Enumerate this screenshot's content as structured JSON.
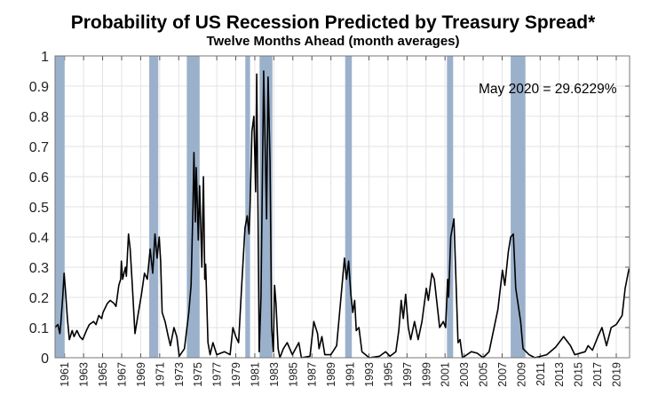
{
  "chart_data": {
    "type": "line",
    "title": "Probability of US Recession Predicted by Treasury Spread*",
    "subtitle": "Twelve Months Ahead (month averages)",
    "xlabel": "",
    "ylabel": "",
    "xlim": [
      1960,
      2020.4
    ],
    "ylim": [
      0,
      1
    ],
    "grid": true,
    "y_ticks": [
      "0",
      "0.1",
      "0.2",
      "0.3",
      "0.4",
      "0.5",
      "0.6",
      "0.7",
      "0.8",
      "0.9",
      "1"
    ],
    "x_ticks": [
      "1961",
      "1963",
      "1965",
      "1967",
      "1969",
      "1971",
      "1973",
      "1975",
      "1977",
      "1979",
      "1981",
      "1983",
      "1985",
      "1987",
      "1989",
      "1991",
      "1993",
      "1995",
      "1997",
      "1999",
      "2001",
      "2003",
      "2005",
      "2007",
      "2009",
      "2011",
      "2013",
      "2015",
      "2017",
      "2019"
    ],
    "annotation": "May 2020 = 29.6229%",
    "colors": {
      "line": "#000000",
      "recession_band": "#9bb1cb",
      "grid": "#e3e3e3"
    },
    "recession_bands": [
      [
        1960.0,
        1961.0
      ],
      [
        1969.9,
        1970.85
      ],
      [
        1973.85,
        1975.2
      ],
      [
        1980.0,
        1980.5
      ],
      [
        1981.5,
        1982.85
      ],
      [
        1990.5,
        1991.2
      ],
      [
        2001.2,
        2001.85
      ],
      [
        2007.9,
        2009.45
      ]
    ],
    "series": [
      {
        "points": [
          [
            1960.0,
            0.1
          ],
          [
            1960.3,
            0.11
          ],
          [
            1960.5,
            0.08
          ],
          [
            1960.6,
            0.11
          ],
          [
            1960.8,
            0.2
          ],
          [
            1960.95,
            0.28
          ],
          [
            1961.1,
            0.22
          ],
          [
            1961.3,
            0.13
          ],
          [
            1961.5,
            0.06
          ],
          [
            1961.8,
            0.09
          ],
          [
            1962.0,
            0.07
          ],
          [
            1962.3,
            0.09
          ],
          [
            1962.6,
            0.07
          ],
          [
            1962.9,
            0.06
          ],
          [
            1963.3,
            0.09
          ],
          [
            1963.6,
            0.11
          ],
          [
            1964.05,
            0.12
          ],
          [
            1964.3,
            0.11
          ],
          [
            1964.6,
            0.14
          ],
          [
            1964.9,
            0.13
          ],
          [
            1965.04,
            0.15
          ],
          [
            1965.5,
            0.18
          ],
          [
            1965.8,
            0.19
          ],
          [
            1966.2,
            0.18
          ],
          [
            1966.4,
            0.17
          ],
          [
            1966.7,
            0.24
          ],
          [
            1966.9,
            0.26
          ],
          [
            1966.97,
            0.32
          ],
          [
            1967.1,
            0.26
          ],
          [
            1967.4,
            0.3
          ],
          [
            1967.5,
            0.27
          ],
          [
            1967.72,
            0.41
          ],
          [
            1967.9,
            0.36
          ],
          [
            1968.1,
            0.25
          ],
          [
            1968.4,
            0.08
          ],
          [
            1968.77,
            0.15
          ],
          [
            1969.08,
            0.21
          ],
          [
            1969.4,
            0.28
          ],
          [
            1969.7,
            0.26
          ],
          [
            1970.0,
            0.36
          ],
          [
            1970.27,
            0.28
          ],
          [
            1970.5,
            0.41
          ],
          [
            1970.73,
            0.33
          ],
          [
            1970.95,
            0.4
          ],
          [
            1971.1,
            0.32
          ],
          [
            1971.26,
            0.15
          ],
          [
            1971.57,
            0.12
          ],
          [
            1971.9,
            0.07
          ],
          [
            1972.13,
            0.04
          ],
          [
            1972.5,
            0.1
          ],
          [
            1972.8,
            0.07
          ],
          [
            1973.06,
            0.005
          ],
          [
            1973.6,
            0.03
          ],
          [
            1974.06,
            0.15
          ],
          [
            1974.3,
            0.24
          ],
          [
            1974.5,
            0.5
          ],
          [
            1974.6,
            0.68
          ],
          [
            1974.75,
            0.45
          ],
          [
            1974.84,
            0.63
          ],
          [
            1974.95,
            0.52
          ],
          [
            1975.06,
            0.39
          ],
          [
            1975.2,
            0.57
          ],
          [
            1975.43,
            0.3
          ],
          [
            1975.6,
            0.6
          ],
          [
            1975.74,
            0.26
          ],
          [
            1975.83,
            0.31
          ],
          [
            1976.08,
            0.05
          ],
          [
            1976.3,
            0.01
          ],
          [
            1976.6,
            0.05
          ],
          [
            1977.0,
            0.01
          ],
          [
            1977.8,
            0.02
          ],
          [
            1978.4,
            0.01
          ],
          [
            1978.7,
            0.1
          ],
          [
            1979.0,
            0.07
          ],
          [
            1979.3,
            0.05
          ],
          [
            1979.6,
            0.23
          ],
          [
            1979.97,
            0.43
          ],
          [
            1980.2,
            0.47
          ],
          [
            1980.4,
            0.41
          ],
          [
            1980.5,
            0.5
          ],
          [
            1980.7,
            0.75
          ],
          [
            1980.9,
            0.8
          ],
          [
            1981.09,
            0.55
          ],
          [
            1981.2,
            0.94
          ],
          [
            1981.33,
            0.5
          ],
          [
            1981.46,
            0.02
          ],
          [
            1981.65,
            0.2
          ],
          [
            1981.93,
            0.95
          ],
          [
            1982.24,
            0.46
          ],
          [
            1982.4,
            0.93
          ],
          [
            1982.6,
            0.65
          ],
          [
            1982.77,
            0.1
          ],
          [
            1982.95,
            0.02
          ],
          [
            1983.08,
            0.24
          ],
          [
            1983.23,
            0.18
          ],
          [
            1983.45,
            0.03
          ],
          [
            1983.64,
            0.0
          ],
          [
            1984.0,
            0.03
          ],
          [
            1984.4,
            0.05
          ],
          [
            1984.94,
            0.01
          ],
          [
            1985.63,
            0.05
          ],
          [
            1985.9,
            0.0
          ],
          [
            1986.8,
            0.005
          ],
          [
            1987.2,
            0.12
          ],
          [
            1987.6,
            0.08
          ],
          [
            1987.75,
            0.03
          ],
          [
            1988.05,
            0.07
          ],
          [
            1988.36,
            0.01
          ],
          [
            1989.0,
            0.01
          ],
          [
            1989.6,
            0.04
          ],
          [
            1990.2,
            0.25
          ],
          [
            1990.42,
            0.33
          ],
          [
            1990.64,
            0.26
          ],
          [
            1990.86,
            0.32
          ],
          [
            1991.1,
            0.21
          ],
          [
            1991.3,
            0.15
          ],
          [
            1991.5,
            0.19
          ],
          [
            1991.67,
            0.09
          ],
          [
            1991.95,
            0.1
          ],
          [
            1992.26,
            0.02
          ],
          [
            1993.03,
            0.0
          ],
          [
            1994.12,
            0.005
          ],
          [
            1994.75,
            0.02
          ],
          [
            1995.21,
            0.005
          ],
          [
            1995.83,
            0.02
          ],
          [
            1996.14,
            0.09
          ],
          [
            1996.39,
            0.19
          ],
          [
            1996.61,
            0.13
          ],
          [
            1996.86,
            0.21
          ],
          [
            1997.14,
            0.1
          ],
          [
            1997.39,
            0.06
          ],
          [
            1997.79,
            0.12
          ],
          [
            1998.17,
            0.06
          ],
          [
            1998.57,
            0.12
          ],
          [
            1999.03,
            0.23
          ],
          [
            1999.25,
            0.19
          ],
          [
            1999.62,
            0.28
          ],
          [
            1999.87,
            0.26
          ],
          [
            2000.43,
            0.1
          ],
          [
            2000.81,
            0.12
          ],
          [
            2001.06,
            0.1
          ],
          [
            2001.27,
            0.26
          ],
          [
            2001.37,
            0.2
          ],
          [
            2001.6,
            0.4
          ],
          [
            2001.93,
            0.46
          ],
          [
            2002.36,
            0.05
          ],
          [
            2002.58,
            0.06
          ],
          [
            2002.83,
            0.0
          ],
          [
            2003.76,
            0.02
          ],
          [
            2004.38,
            0.015
          ],
          [
            2005.0,
            0.0
          ],
          [
            2005.63,
            0.02
          ],
          [
            2006.56,
            0.16
          ],
          [
            2007.03,
            0.29
          ],
          [
            2007.28,
            0.24
          ],
          [
            2007.65,
            0.35
          ],
          [
            2007.9,
            0.4
          ],
          [
            2008.18,
            0.41
          ],
          [
            2008.43,
            0.23
          ],
          [
            2008.95,
            0.12
          ],
          [
            2009.2,
            0.03
          ],
          [
            2009.83,
            0.01
          ],
          [
            2010.45,
            0.0
          ],
          [
            2011.69,
            0.01
          ],
          [
            2012.62,
            0.035
          ],
          [
            2013.46,
            0.07
          ],
          [
            2014.18,
            0.04
          ],
          [
            2014.64,
            0.01
          ],
          [
            2015.73,
            0.02
          ],
          [
            2016.04,
            0.04
          ],
          [
            2016.5,
            0.025
          ],
          [
            2017.07,
            0.07
          ],
          [
            2017.5,
            0.1
          ],
          [
            2017.97,
            0.04
          ],
          [
            2018.47,
            0.1
          ],
          [
            2019.0,
            0.11
          ],
          [
            2019.62,
            0.14
          ],
          [
            2019.93,
            0.23
          ],
          [
            2020.34,
            0.296
          ]
        ]
      }
    ]
  }
}
